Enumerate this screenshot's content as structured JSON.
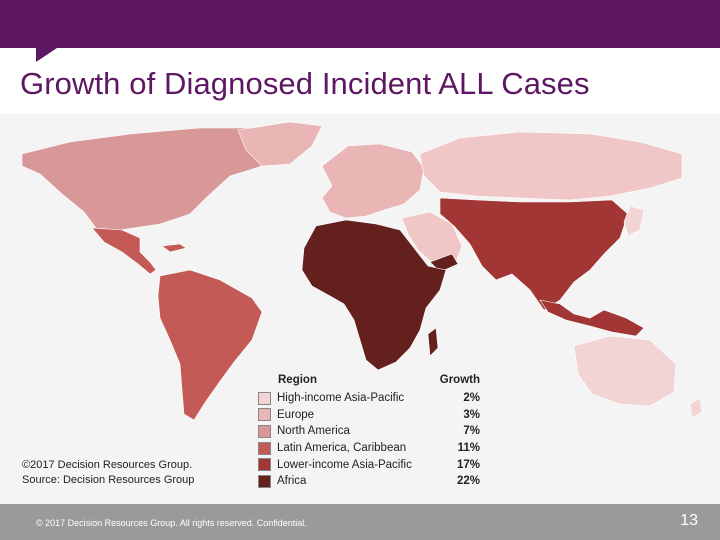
{
  "slide": {
    "title": "Growth of Diagnosed Incident ALL Cases",
    "footer_text": "© 2017 Decision Resources Group. All rights reserved. Confidential.",
    "page_number": "13"
  },
  "map": {
    "copyright_line1": "©2017 Decision Resources Group.",
    "copyright_line2": "Source: Decision Resources Group",
    "legend": {
      "region_header": "Region",
      "growth_header": "Growth",
      "items": [
        {
          "region": "High-income Asia-Pacific",
          "growth": "2%",
          "color": "#f3d4d4"
        },
        {
          "region": "Europe",
          "growth": "3%",
          "color": "#e9b5b5"
        },
        {
          "region": "North America",
          "growth": "7%",
          "color": "#d99898"
        },
        {
          "region": "Latin America, Caribbean",
          "growth": "11%",
          "color": "#c45a55"
        },
        {
          "region": "Lower-income Asia-Pacific",
          "growth": "17%",
          "color": "#a13634"
        },
        {
          "region": "Africa",
          "growth": "22%",
          "color": "#64201c"
        }
      ]
    }
  },
  "colors": {
    "brand_purple": "#5e1762",
    "footer_gray": "#9a9a9a"
  }
}
